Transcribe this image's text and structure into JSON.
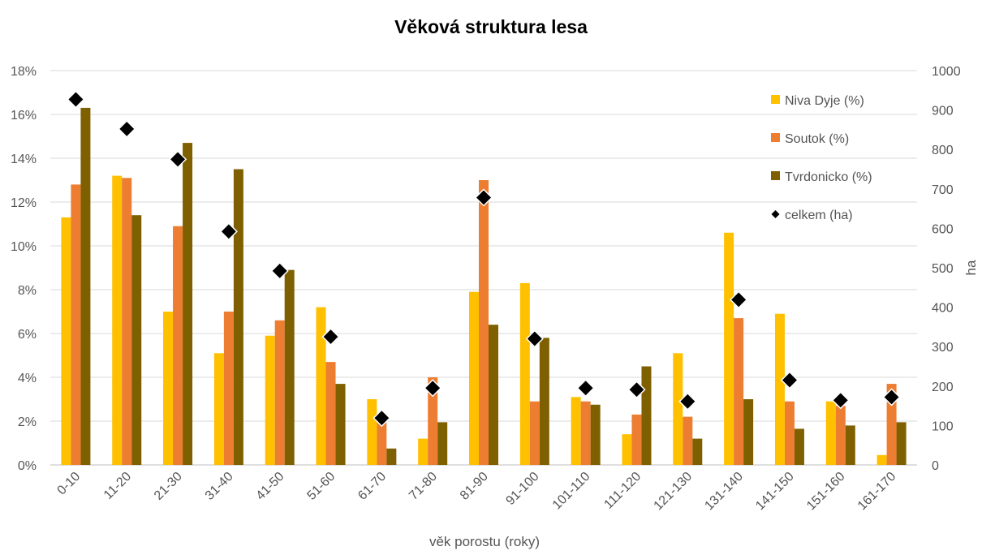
{
  "chart_data": {
    "type": "bar",
    "title": "Věková struktura lesa",
    "xlabel": "věk porostu (roky)",
    "ylabel": "",
    "y2label": "ha",
    "ylim": [
      0,
      18
    ],
    "y2lim": [
      0,
      1000
    ],
    "yticks": [
      "0%",
      "2%",
      "4%",
      "6%",
      "8%",
      "10%",
      "12%",
      "14%",
      "16%",
      "18%"
    ],
    "y2ticks": [
      "0",
      "100",
      "200",
      "300",
      "400",
      "500",
      "600",
      "700",
      "800",
      "900",
      "1000"
    ],
    "grid": true,
    "legend_position": "right",
    "categories": [
      "0-10",
      "11-20",
      "21-30",
      "31-40",
      "41-50",
      "51-60",
      "61-70",
      "71-80",
      "81-90",
      "91-100",
      "101-110",
      "111-120",
      "121-130",
      "131-140",
      "141-150",
      "151-160",
      "161-170"
    ],
    "series": [
      {
        "name": "Niva Dyje (%)",
        "type": "bar",
        "axis": "left",
        "color": "#FFC000",
        "values": [
          11.3,
          13.2,
          7.0,
          5.1,
          5.9,
          7.2,
          3.0,
          1.2,
          7.9,
          8.3,
          3.1,
          1.4,
          5.1,
          10.6,
          6.9,
          2.9,
          0.45
        ]
      },
      {
        "name": "Soutok (%)",
        "type": "bar",
        "axis": "left",
        "color": "#ED7D31",
        "values": [
          12.8,
          13.1,
          10.9,
          7.0,
          6.6,
          4.7,
          2.2,
          4.0,
          13.0,
          2.9,
          2.9,
          2.3,
          2.2,
          6.7,
          2.9,
          2.7,
          3.7
        ]
      },
      {
        "name": "Tvrdonicko (%)",
        "type": "bar",
        "axis": "left",
        "color": "#7F6000",
        "values": [
          16.3,
          11.4,
          14.7,
          13.5,
          8.9,
          3.7,
          0.75,
          1.95,
          6.4,
          5.8,
          2.75,
          4.5,
          1.2,
          3.0,
          1.65,
          1.8,
          1.95
        ]
      },
      {
        "name": "celkem (ha)",
        "type": "scatter",
        "axis": "right",
        "color": "#000000",
        "values": [
          927,
          852,
          775,
          592,
          492,
          325,
          119,
          195,
          678,
          320,
          195,
          191,
          161,
          419,
          215,
          164,
          172
        ]
      }
    ]
  }
}
